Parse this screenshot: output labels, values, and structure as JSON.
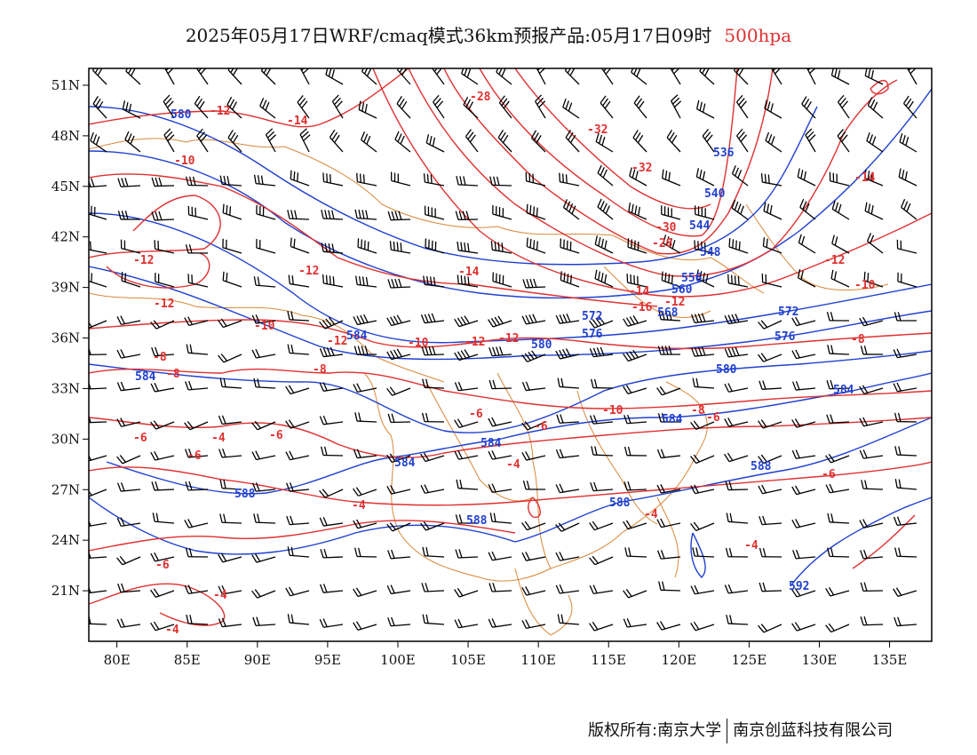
{
  "title": {
    "main": "2025年05月17日WRF/cmaq模式36km预报产品:05月17日09时",
    "level": "500hpa"
  },
  "map": {
    "lon_labels": [
      "80E",
      "85E",
      "90E",
      "95E",
      "100E",
      "105E",
      "110E",
      "115E",
      "120E",
      "125E",
      "130E",
      "135E"
    ],
    "lat_labels": [
      "51N",
      "48N",
      "45N",
      "42N",
      "39N",
      "36N",
      "33N",
      "30N",
      "27N",
      "24N",
      "21N"
    ],
    "lon_values": [
      80,
      85,
      90,
      95,
      100,
      105,
      110,
      115,
      120,
      125,
      130,
      135
    ],
    "lat_values": [
      51,
      48,
      45,
      42,
      39,
      36,
      33,
      30,
      27,
      24,
      21
    ],
    "lon_range": [
      78,
      138
    ],
    "lat_range": [
      18,
      52
    ],
    "colors": {
      "temperature": "#e03030",
      "geopotential_height": "#2040d0",
      "boundaries": "#d9883a",
      "wind_barbs": "#000000"
    },
    "height_contour_labels": [
      "580",
      "536",
      "540",
      "544",
      "548",
      "556",
      "560",
      "568",
      "572",
      "572",
      "576",
      "576",
      "580",
      "580",
      "584",
      "584",
      "584",
      "584",
      "584",
      "584",
      "588",
      "588",
      "588",
      "588",
      "592"
    ],
    "temperature_contour_labels": [
      "-12",
      "-14",
      "-28",
      "-32",
      "-32",
      "-30",
      "-28",
      "-10",
      "-12",
      "-12",
      "-12",
      "-14",
      "-16",
      "-14",
      "-12",
      "-10",
      "-12",
      "-12",
      "-12",
      "-10",
      "-8",
      "-8",
      "-8",
      "-6",
      "-6",
      "-6",
      "-4",
      "-6",
      "-6",
      "-8",
      "-6",
      "-4",
      "-4",
      "-4",
      "-6",
      "-4",
      "-4",
      "-10",
      "-12",
      "-8",
      "-10",
      "-14",
      "-6",
      "-4"
    ]
  },
  "footer": {
    "owner": "版权所有:南京大学",
    "company": "南京创蓝科技有限公司"
  }
}
